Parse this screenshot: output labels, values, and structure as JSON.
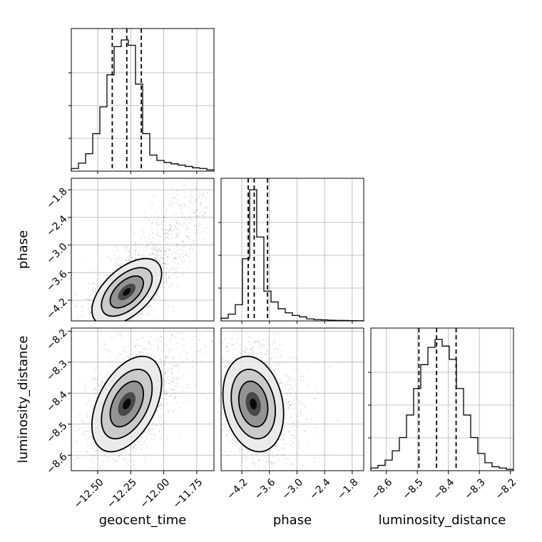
{
  "chart_data": {
    "type": "corner",
    "parameters": [
      {
        "name": "geocent_time",
        "range": [
          -12.7,
          -11.62
        ],
        "ticks": [
          -12.5,
          -12.25,
          -12.0,
          -11.75
        ],
        "tick_labels": [
          "−12.50",
          "−12.25",
          "−12.00",
          "−11.75"
        ],
        "quantiles": [
          -12.39,
          -12.28,
          -12.17
        ],
        "histogram": [
          0.02,
          0.06,
          0.13,
          0.28,
          0.48,
          0.72,
          0.93,
          0.98,
          0.94,
          0.65,
          0.28,
          0.12,
          0.08,
          0.065,
          0.055,
          0.045,
          0.035,
          0.025,
          0.02,
          0.01
        ]
      },
      {
        "name": "phase",
        "range": [
          -4.65,
          -1.55
        ],
        "ticks": [
          -4.2,
          -3.6,
          -3.0,
          -2.4,
          -1.8
        ],
        "tick_labels": [
          "−4.2",
          "−3.6",
          "−3.0",
          "−2.4",
          "−1.8"
        ],
        "quantiles": [
          -4.06,
          -3.93,
          -3.64
        ],
        "histogram": [
          0.02,
          0.05,
          0.12,
          0.46,
          0.97,
          0.62,
          0.22,
          0.14,
          0.09,
          0.06,
          0.04,
          0.03,
          0.015,
          0.01,
          0.008,
          0.005,
          0.004,
          0.003,
          0.002,
          0.001
        ]
      },
      {
        "name": "luminosity_distance",
        "range": [
          -8.65,
          -8.19
        ],
        "ticks": [
          -8.6,
          -8.5,
          -8.4,
          -8.3,
          -8.2
        ],
        "tick_labels": [
          "−8.6",
          "−8.5",
          "−8.4",
          "−8.3",
          "−8.2"
        ],
        "quantiles": [
          -8.495,
          -8.438,
          -8.375
        ],
        "histogram": [
          0.02,
          0.04,
          0.08,
          0.15,
          0.25,
          0.42,
          0.62,
          0.8,
          0.93,
          0.99,
          0.94,
          0.84,
          0.62,
          0.42,
          0.25,
          0.13,
          0.06,
          0.03,
          0.02,
          0.01
        ]
      }
    ],
    "pairs": [
      {
        "x": "geocent_time",
        "y": "phase",
        "center": [
          -12.28,
          -4.02
        ],
        "sigma": [
          0.12,
          0.33
        ],
        "rho": 0.55
      },
      {
        "x": "geocent_time",
        "y": "luminosity_distance",
        "center": [
          -12.28,
          -8.435
        ],
        "sigma": [
          0.12,
          0.07
        ],
        "rho": 0.45
      },
      {
        "x": "phase",
        "y": "luminosity_distance",
        "center": [
          -3.95,
          -8.435
        ],
        "sigma": [
          0.3,
          0.07
        ],
        "rho": -0.2
      }
    ],
    "grid": true,
    "quantile_levels": [
      0.16,
      0.5,
      0.84
    ]
  }
}
